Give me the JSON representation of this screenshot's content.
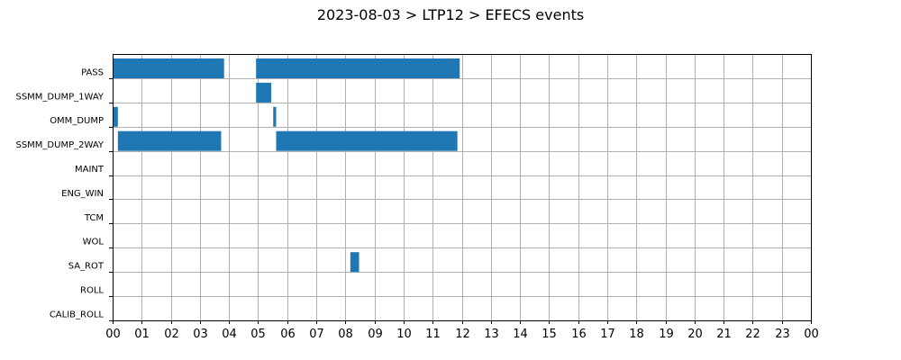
{
  "chart_data": {
    "type": "bar",
    "orientation": "horizontal-timeline",
    "title": "2023-08-03 > LTP12 > EFECS events",
    "xlabel": "",
    "ylabel": "",
    "x_unit": "hour of day",
    "xlim": [
      0,
      24
    ],
    "x_tick_labels": [
      "00",
      "01",
      "02",
      "03",
      "04",
      "05",
      "06",
      "07",
      "08",
      "09",
      "10",
      "11",
      "12",
      "13",
      "14",
      "15",
      "16",
      "17",
      "18",
      "19",
      "20",
      "21",
      "22",
      "23",
      "00"
    ],
    "categories": [
      "PASS",
      "SSMM_DUMP_1WAY",
      "OMM_DUMP",
      "SSMM_DUMP_2WAY",
      "MAINT",
      "ENG_WIN",
      "TCM",
      "WOL",
      "SA_ROT",
      "ROLL",
      "CALIB_ROLL"
    ],
    "grid": true,
    "bar_color": "#1f77b4",
    "events": [
      {
        "category": "PASS",
        "start": 0.0,
        "end": 3.83
      },
      {
        "category": "PASS",
        "start": 4.93,
        "end": 11.93
      },
      {
        "category": "SSMM_DUMP_1WAY",
        "start": 4.93,
        "end": 5.45
      },
      {
        "category": "OMM_DUMP",
        "start": 0.0,
        "end": 0.18
      },
      {
        "category": "OMM_DUMP",
        "start": 5.52,
        "end": 5.62
      },
      {
        "category": "SSMM_DUMP_2WAY",
        "start": 0.18,
        "end": 3.73
      },
      {
        "category": "SSMM_DUMP_2WAY",
        "start": 5.62,
        "end": 11.85
      },
      {
        "category": "SA_ROT",
        "start": 8.17,
        "end": 8.47
      }
    ]
  }
}
